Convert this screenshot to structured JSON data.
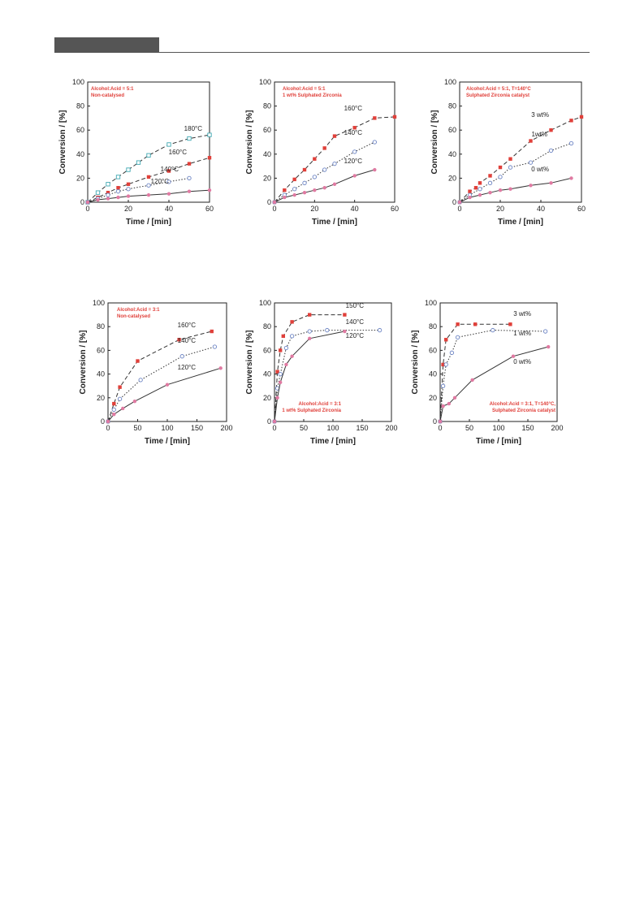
{
  "page": {
    "header_bar_color": "#555555"
  },
  "colors": {
    "red": "#e0403a",
    "blue": "#6c84c4",
    "cyan": "#3fa8b2",
    "pink": "#e07aa2",
    "axis": "#222222"
  },
  "chart_data": [
    {
      "type": "scatter",
      "xlabel": "Time / [min]",
      "ylabel": "Conversion / [%]",
      "xlim": [
        0,
        60
      ],
      "ylim": [
        0,
        100
      ],
      "xticks": [
        0,
        20,
        40,
        60
      ],
      "yticks": [
        0,
        20,
        40,
        60,
        80,
        100
      ],
      "annotation": [
        "Alcohol:Acid = 5:1",
        "Non-catalysed"
      ],
      "series": [
        {
          "name": "180°C",
          "color": "#3fa8b2",
          "marker": "open-square",
          "line": "dashed",
          "x": [
            0,
            5,
            10,
            15,
            20,
            25,
            30,
            40,
            50,
            60
          ],
          "y": [
            0,
            8,
            15,
            21,
            27,
            33,
            39,
            48,
            53,
            56
          ]
        },
        {
          "name": "160°C",
          "color": "#e0403a",
          "marker": "filled-square",
          "line": "dashed",
          "x": [
            0,
            5,
            10,
            15,
            20,
            30,
            40,
            50,
            60
          ],
          "y": [
            0,
            4,
            8,
            12,
            15,
            21,
            26,
            32,
            37
          ]
        },
        {
          "name": "140°C",
          "color": "#6c84c4",
          "marker": "open-circle",
          "line": "dotted",
          "x": [
            0,
            5,
            10,
            15,
            20,
            30,
            40,
            50
          ],
          "y": [
            0,
            3,
            6,
            9,
            11,
            14,
            17,
            20
          ]
        },
        {
          "name": "120°C",
          "color": "#e07aa2",
          "marker": "filled-circle",
          "line": "solid",
          "x": [
            0,
            5,
            10,
            15,
            20,
            30,
            40,
            50,
            60
          ],
          "y": [
            0,
            2,
            3,
            4,
            5,
            6,
            7,
            9,
            10
          ]
        }
      ]
    },
    {
      "type": "scatter",
      "xlabel": "Time / [min]",
      "ylabel": "Conversion / [%]",
      "xlim": [
        0,
        60
      ],
      "ylim": [
        0,
        100
      ],
      "xticks": [
        0,
        20,
        40,
        60
      ],
      "yticks": [
        0,
        20,
        40,
        60,
        80,
        100
      ],
      "annotation": [
        "Alcohol:Acid = 5:1",
        "1 wt% Sulphated Zirconia"
      ],
      "series": [
        {
          "name": "160°C",
          "color": "#e0403a",
          "marker": "filled-square",
          "line": "dashed",
          "x": [
            0,
            5,
            10,
            15,
            20,
            25,
            30,
            40,
            50,
            60
          ],
          "y": [
            0,
            10,
            19,
            27,
            36,
            45,
            55,
            62,
            70,
            71
          ]
        },
        {
          "name": "140°C",
          "color": "#6c84c4",
          "marker": "open-circle",
          "line": "dotted",
          "x": [
            0,
            5,
            10,
            15,
            20,
            25,
            30,
            40,
            50
          ],
          "y": [
            0,
            6,
            11,
            16,
            21,
            27,
            32,
            42,
            50
          ]
        },
        {
          "name": "120°C",
          "color": "#e07aa2",
          "marker": "filled-circle",
          "line": "solid",
          "x": [
            0,
            5,
            10,
            15,
            20,
            25,
            30,
            40,
            50
          ],
          "y": [
            0,
            4,
            6,
            8,
            10,
            12,
            15,
            22,
            27
          ]
        }
      ]
    },
    {
      "type": "scatter",
      "xlabel": "Time / [min]",
      "ylabel": "Conversion / [%]",
      "xlim": [
        0,
        60
      ],
      "ylim": [
        0,
        100
      ],
      "xticks": [
        0,
        20,
        40,
        60
      ],
      "yticks": [
        0,
        20,
        40,
        60,
        80,
        100
      ],
      "annotation": [
        "Alcohol:Acid = 5:1, T=140°C",
        "Sulphated Zirconia catalyst"
      ],
      "series": [
        {
          "name": "3 wt%",
          "color": "#e0403a",
          "marker": "filled-square",
          "line": "dashed",
          "x": [
            0,
            5,
            8,
            10,
            15,
            20,
            25,
            35,
            45,
            55,
            60
          ],
          "y": [
            0,
            9,
            12,
            16,
            22,
            29,
            36,
            51,
            60,
            68,
            71
          ]
        },
        {
          "name": "1wt%",
          "color": "#6c84c4",
          "marker": "open-circle",
          "line": "dotted",
          "x": [
            0,
            5,
            10,
            15,
            20,
            25,
            35,
            45,
            55
          ],
          "y": [
            0,
            6,
            11,
            16,
            21,
            29,
            33,
            43,
            49
          ]
        },
        {
          "name": "0 wt%",
          "color": "#e07aa2",
          "marker": "filled-circle",
          "line": "solid",
          "x": [
            0,
            5,
            10,
            15,
            20,
            25,
            35,
            45,
            55
          ],
          "y": [
            0,
            4,
            6,
            8,
            10,
            11,
            14,
            16,
            20
          ]
        }
      ]
    },
    {
      "type": "scatter",
      "xlabel": "Time / [min]",
      "ylabel": "Conversion / [%]",
      "xlim": [
        0,
        200
      ],
      "ylim": [
        0,
        100
      ],
      "xticks": [
        0,
        50,
        100,
        150,
        200
      ],
      "yticks": [
        0,
        20,
        40,
        60,
        80,
        100
      ],
      "annotation": [
        "Alcohol:Acid = 3:1",
        "Non-catalysed"
      ],
      "series": [
        {
          "name": "160°C",
          "color": "#e0403a",
          "marker": "filled-square",
          "line": "dashed",
          "x": [
            0,
            10,
            20,
            50,
            120,
            175
          ],
          "y": [
            0,
            15,
            29,
            51,
            69,
            76
          ]
        },
        {
          "name": "140°C",
          "color": "#6c84c4",
          "marker": "open-circle",
          "line": "dotted",
          "x": [
            0,
            10,
            20,
            55,
            125,
            180
          ],
          "y": [
            0,
            10,
            19,
            35,
            55,
            63
          ]
        },
        {
          "name": "120°C",
          "color": "#e07aa2",
          "marker": "filled-circle",
          "line": "solid",
          "x": [
            0,
            10,
            25,
            45,
            100,
            190
          ],
          "y": [
            0,
            6,
            11,
            17,
            31,
            45
          ]
        }
      ]
    },
    {
      "type": "scatter",
      "xlabel": "Time / [min]",
      "ylabel": "Conversion / [%]",
      "xlim": [
        0,
        200
      ],
      "ylim": [
        0,
        100
      ],
      "xticks": [
        0,
        50,
        100,
        150,
        200
      ],
      "yticks": [
        0,
        20,
        40,
        60,
        80,
        100
      ],
      "annotation": [
        "Alcohol:Acid = 3:1",
        "1 wt% Sulphated Zirconia"
      ],
      "series": [
        {
          "name": "150°C",
          "color": "#e0403a",
          "marker": "filled-square",
          "line": "dashed",
          "x": [
            0,
            5,
            10,
            15,
            30,
            60,
            120
          ],
          "y": [
            0,
            42,
            60,
            72,
            84,
            90,
            90
          ]
        },
        {
          "name": "140°C",
          "color": "#6c84c4",
          "marker": "open-circle",
          "line": "dotted",
          "x": [
            0,
            5,
            10,
            20,
            30,
            60,
            90,
            180
          ],
          "y": [
            0,
            28,
            40,
            62,
            72,
            76,
            77,
            77
          ]
        },
        {
          "name": "120°C",
          "color": "#e07aa2",
          "marker": "filled-circle",
          "line": "solid",
          "x": [
            0,
            5,
            10,
            20,
            30,
            60,
            120
          ],
          "y": [
            0,
            20,
            33,
            48,
            55,
            70,
            76
          ]
        }
      ]
    },
    {
      "type": "scatter",
      "xlabel": "Time / [min]",
      "ylabel": "Conversion / [%]",
      "xlim": [
        0,
        200
      ],
      "ylim": [
        0,
        100
      ],
      "xticks": [
        0,
        50,
        100,
        150,
        200
      ],
      "yticks": [
        0,
        20,
        40,
        60,
        80,
        100
      ],
      "annotation": [
        "Alcohol:Acid = 3:1, T=140°C,",
        "Sulphated Zirconia catalyst"
      ],
      "series": [
        {
          "name": "3 wt%",
          "color": "#e0403a",
          "marker": "filled-square",
          "line": "dashed",
          "x": [
            0,
            5,
            10,
            30,
            60,
            120
          ],
          "y": [
            0,
            48,
            69,
            82,
            82,
            82
          ]
        },
        {
          "name": "1 wt%",
          "color": "#6c84c4",
          "marker": "open-circle",
          "line": "dotted",
          "x": [
            0,
            5,
            10,
            20,
            30,
            90,
            180
          ],
          "y": [
            0,
            30,
            48,
            58,
            71,
            77,
            76
          ]
        },
        {
          "name": "0 wt%",
          "color": "#e07aa2",
          "marker": "filled-circle",
          "line": "solid",
          "x": [
            0,
            5,
            15,
            25,
            55,
            125,
            185
          ],
          "y": [
            0,
            13,
            15,
            20,
            35,
            55,
            63
          ]
        }
      ]
    }
  ]
}
